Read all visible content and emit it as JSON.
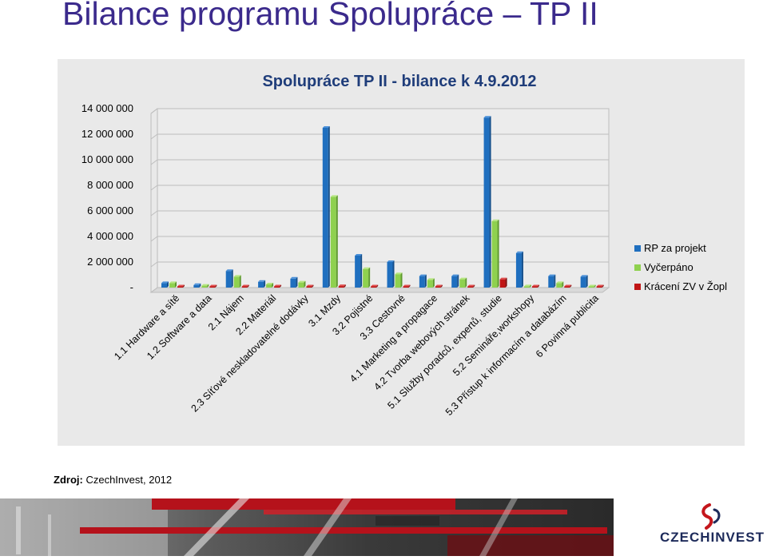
{
  "slide": {
    "title": "Bilance programu Spolupráce – TP II",
    "source_label": "Zdroj:",
    "source_value": "CzechInvest, 2012",
    "logo_text": "CZECHINVEST"
  },
  "colors": {
    "title": "#3b2a8c",
    "series": [
      "#1f6fbf",
      "#8fd14f",
      "#c01515"
    ],
    "panel": "#e9e9e9",
    "logo_accent": "#c4161c",
    "logo_text": "#1d2a5a"
  },
  "chart_data": {
    "type": "bar",
    "title": "Spolupráce TP II - bilance k 4.9.2012",
    "xlabel": "",
    "ylabel": "",
    "ylim": [
      0,
      14000000
    ],
    "yticks": [
      0,
      2000000,
      4000000,
      6000000,
      8000000,
      10000000,
      12000000,
      14000000
    ],
    "ytick_labels": [
      "-",
      "2 000 000",
      "4 000 000",
      "6 000 000",
      "8 000 000",
      "10 000 000",
      "12 000 000",
      "14 000 000"
    ],
    "grid": true,
    "legend_position": "right",
    "categories": [
      "1.1 Hardware a sítě",
      "1.2 Software a data",
      "2.1 Nájem",
      "2.2 Materiál",
      "2.3 Síťové neskladovatelné dodávky",
      "3.1 Mzdy",
      "3.2 Pojistné",
      "3.3 Cestovné",
      "4.1 Marketing a propagace",
      "4.2 Tvorba webových stránek",
      "5.1 Služby poradců, expertů, studie",
      "5.2 Semináře,workshopy",
      "5.3 Přístup k informacím a databázím",
      "6 Povinná publicita"
    ],
    "series": [
      {
        "name": "RP za projekt",
        "values": [
          350000,
          200000,
          1300000,
          450000,
          700000,
          12500000,
          2500000,
          2000000,
          900000,
          900000,
          13300000,
          2700000,
          900000,
          850000
        ]
      },
      {
        "name": "Vyčerpáno",
        "values": [
          350000,
          150000,
          850000,
          250000,
          400000,
          7100000,
          1450000,
          1050000,
          600000,
          650000,
          5200000,
          100000,
          350000,
          80000
        ]
      },
      {
        "name": "Krácení ZV v Žopl",
        "values": [
          30000,
          30000,
          50000,
          30000,
          30000,
          120000,
          40000,
          80000,
          40000,
          40000,
          650000,
          60000,
          40000,
          30000
        ]
      }
    ]
  }
}
